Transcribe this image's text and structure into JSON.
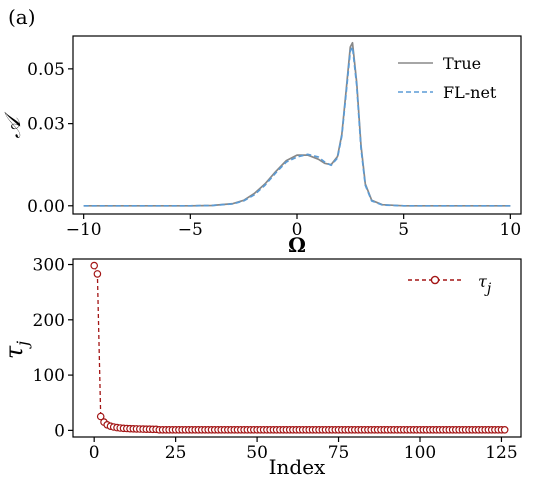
{
  "figure": {
    "panel_label": "(a)"
  },
  "chart_data": [
    {
      "type": "line",
      "xlabel": "Ω",
      "ylabel": "𝒜",
      "xlim": [
        -10.5,
        10.5
      ],
      "ylim": [
        -0.003,
        0.062
      ],
      "xticks": [
        -10,
        -5,
        0,
        5,
        10
      ],
      "xtick_labels": [
        "−10",
        "−5",
        "0",
        "5",
        "10"
      ],
      "yticks": [
        0.0,
        0.03,
        0.05
      ],
      "ytick_labels": [
        "0.00",
        "0.03",
        "0.05"
      ],
      "legend_position": "top-right",
      "grid": false,
      "series": [
        {
          "name": "True",
          "style": "solid",
          "color": "#888888",
          "x": [
            -10,
            -5,
            -4,
            -3,
            -2.5,
            -2,
            -1.5,
            -1,
            -0.5,
            0,
            0.5,
            1,
            1.3,
            1.6,
            1.9,
            2.1,
            2.3,
            2.5,
            2.6,
            2.8,
            3.0,
            3.2,
            3.5,
            4,
            5,
            10
          ],
          "y": [
            0,
            0,
            0.0001,
            0.0008,
            0.002,
            0.0045,
            0.008,
            0.0125,
            0.0165,
            0.0185,
            0.0185,
            0.017,
            0.0155,
            0.015,
            0.018,
            0.026,
            0.042,
            0.058,
            0.0595,
            0.045,
            0.022,
            0.008,
            0.002,
            0.0004,
            0,
            0
          ]
        },
        {
          "name": "FL-net",
          "style": "dashed",
          "color": "#5b9bd5",
          "x": [
            -10,
            -5,
            -4,
            -3,
            -2.5,
            -2,
            -1.5,
            -1,
            -0.5,
            0,
            0.5,
            1,
            1.3,
            1.6,
            1.9,
            2.1,
            2.3,
            2.5,
            2.6,
            2.8,
            3.0,
            3.2,
            3.5,
            4,
            5,
            10
          ],
          "y": [
            0,
            0,
            0.0001,
            0.0007,
            0.0018,
            0.004,
            0.0075,
            0.012,
            0.016,
            0.0178,
            0.0188,
            0.0178,
            0.016,
            0.0148,
            0.0175,
            0.0255,
            0.041,
            0.0565,
            0.058,
            0.044,
            0.021,
            0.0075,
            0.0018,
            0.0003,
            0,
            0
          ]
        }
      ]
    },
    {
      "type": "line",
      "xlabel": "Index",
      "ylabel": "τ",
      "ylabel_sub": "j",
      "xlim": [
        -6.5,
        131
      ],
      "ylim": [
        -12,
        310
      ],
      "xticks": [
        0,
        25,
        50,
        75,
        100,
        125
      ],
      "xtick_labels": [
        "0",
        "25",
        "50",
        "75",
        "100",
        "125"
      ],
      "yticks": [
        0,
        100,
        200,
        300
      ],
      "ytick_labels": [
        "0",
        "100",
        "200",
        "300"
      ],
      "legend_position": "top-right",
      "grid": false,
      "series": [
        {
          "name": "τ",
          "name_sub": "j",
          "style": "dashed-marker",
          "color": "#a31515",
          "n_points": 127,
          "y_head": [
            298,
            283,
            25,
            15,
            10,
            7.5,
            6,
            5,
            4.3,
            3.8,
            3.4,
            3.1,
            2.9,
            2.7,
            2.5,
            2.35,
            2.2,
            2.1,
            2.0,
            1.9
          ],
          "y_tail": 1.0
        }
      ]
    }
  ]
}
